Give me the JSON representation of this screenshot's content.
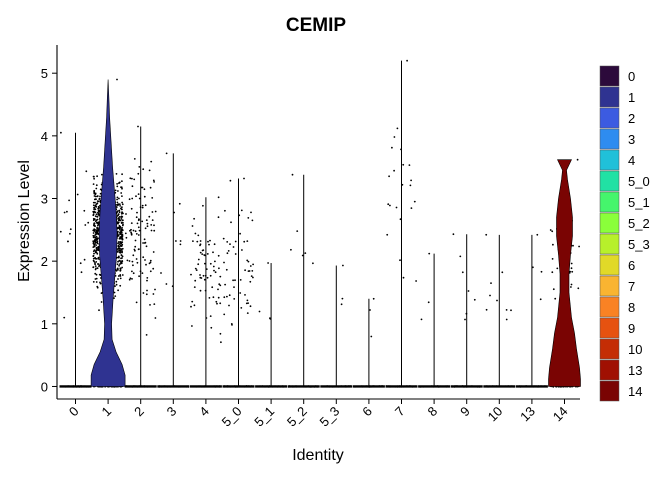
{
  "chart_data": {
    "type": "violin",
    "title": "CEMIP",
    "xlabel": "Identity",
    "ylabel": "Expression Level",
    "ylim": [
      -0.2,
      5.45
    ],
    "yticks": [
      0,
      1,
      2,
      3,
      4,
      5
    ],
    "grid": false,
    "legend_position": "right",
    "categories": [
      "0",
      "1",
      "2",
      "3",
      "4",
      "5_0",
      "5_1",
      "5_2",
      "5_3",
      "6",
      "7",
      "8",
      "9",
      "10",
      "13",
      "14"
    ],
    "colors": [
      "#2c0a3b",
      "#2f3391",
      "#3c5be1",
      "#2e8cf0",
      "#20c0d9",
      "#21e1a4",
      "#45f56c",
      "#8aff3a",
      "#b7f02b",
      "#e1d928",
      "#f9b431",
      "#f98224",
      "#e65210",
      "#c42d05",
      "#a01002",
      "#7a0403"
    ],
    "max_expression": [
      4.05,
      4.9,
      4.15,
      3.72,
      3.02,
      3.32,
      1.97,
      3.38,
      1.93,
      1.4,
      5.2,
      2.12,
      2.43,
      2.42,
      2.42,
      3.62
    ],
    "expressing_cells": [
      18,
      900,
      110,
      9,
      70,
      55,
      4,
      6,
      3,
      3,
      22,
      3,
      7,
      9,
      4,
      40
    ],
    "filled_violins": [
      "1",
      "14"
    ]
  }
}
